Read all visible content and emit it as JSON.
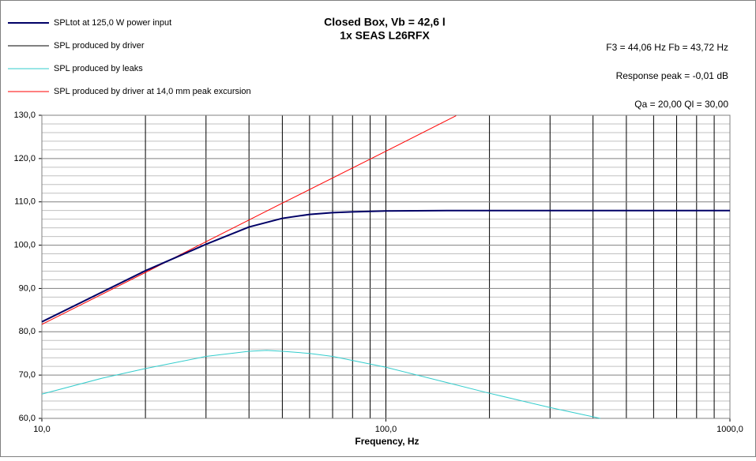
{
  "chart_data": {
    "type": "line",
    "title": "Closed Box, Vb = 42,6 l",
    "subtitle": "1x SEAS L26RFX",
    "annotations": [
      "F3 = 44,06  Hz   Fb = 43,72  Hz",
      "Response peak = -0,01  dB",
      "Qa = 20,00   Ql = 30,00"
    ],
    "x_label": "Frequency,  Hz",
    "x_scale": "log",
    "xlim": [
      10,
      1000
    ],
    "xticks": [
      {
        "value": 10,
        "label": "10,0"
      },
      {
        "value": 100,
        "label": "100,0"
      },
      {
        "value": 1000,
        "label": "1000,0"
      }
    ],
    "xminor_ticks": [
      20,
      30,
      40,
      50,
      60,
      70,
      80,
      90,
      200,
      300,
      400,
      500,
      600,
      700,
      800,
      900
    ],
    "ylim": [
      60,
      130
    ],
    "yticks": [
      {
        "value": 60,
        "label": "60,0"
      },
      {
        "value": 70,
        "label": "70,0"
      },
      {
        "value": 80,
        "label": "80,0"
      },
      {
        "value": 90,
        "label": "90,0"
      },
      {
        "value": 100,
        "label": "100,0"
      },
      {
        "value": 110,
        "label": "110,0"
      },
      {
        "value": 120,
        "label": "120,0"
      },
      {
        "value": 130,
        "label": "130,0"
      }
    ],
    "yminor_ticks": [
      62,
      64,
      66,
      68,
      72,
      74,
      76,
      78,
      82,
      84,
      86,
      88,
      92,
      94,
      96,
      98,
      102,
      104,
      106,
      108,
      112,
      114,
      116,
      118,
      122,
      124,
      126,
      128
    ],
    "grid": true,
    "legend": "top-left",
    "series": [
      {
        "name": "SPLtot at 125,0 W power input",
        "color": "#000066",
        "width": 2,
        "x": [
          10,
          15,
          20,
          30,
          40,
          50,
          60,
          70,
          80,
          100,
          150,
          200,
          300,
          500,
          700,
          1000
        ],
        "values": [
          82.3,
          89.2,
          94.1,
          100.2,
          104.2,
          106.2,
          107.1,
          107.5,
          107.7,
          107.9,
          108.0,
          108.0,
          108.0,
          108.0,
          108.0,
          108.0
        ]
      },
      {
        "name": "SPL produced by driver",
        "color": "#000000",
        "width": 1,
        "x": [
          10,
          15,
          20,
          30,
          40,
          50,
          60,
          70,
          80,
          100,
          150,
          200,
          300,
          500,
          700,
          1000
        ],
        "values": [
          82.3,
          89.2,
          94.1,
          100.2,
          104.2,
          106.2,
          107.1,
          107.5,
          107.7,
          107.9,
          108.0,
          108.0,
          108.0,
          108.0,
          108.0,
          108.0
        ]
      },
      {
        "name": "SPL produced by leaks",
        "color": "#33cccc",
        "width": 1,
        "x": [
          10,
          15,
          20,
          30,
          40,
          45,
          50,
          60,
          70,
          100,
          150,
          200,
          300,
          420
        ],
        "values": [
          65.6,
          69.3,
          71.5,
          74.3,
          75.5,
          75.7,
          75.5,
          75.0,
          74.3,
          71.8,
          68.3,
          65.8,
          62.5,
          60.0
        ]
      },
      {
        "name": "SPL produced by driver at 14,0 mm peak excursion",
        "color": "#ff0000",
        "width": 1,
        "x": [
          10,
          20,
          30,
          50,
          100,
          160
        ],
        "values": [
          81.7,
          93.7,
          100.8,
          109.7,
          121.7,
          129.9
        ]
      }
    ]
  }
}
